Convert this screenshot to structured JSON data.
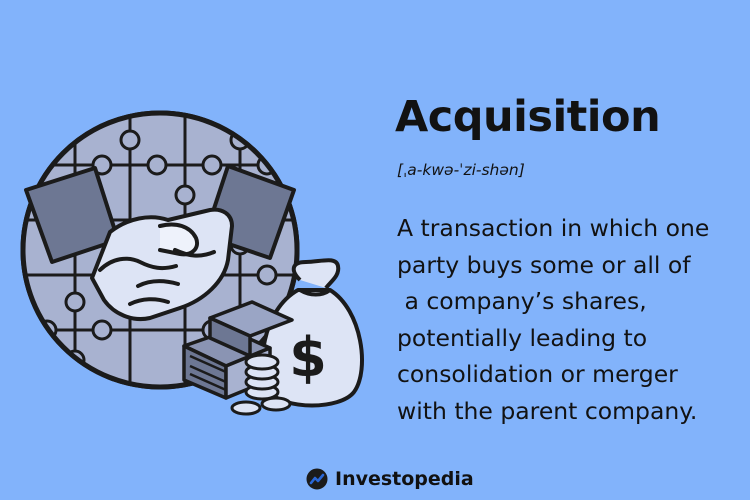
{
  "term": "Acquisition",
  "pronunciation": "[ˌa-kwə-ˈzi-shən]",
  "definition_lines": [
    "A transaction in which one",
    "party buys some or all of",
    " a company’s shares,",
    "potentially leading to",
    "consolidation or merger",
    "with the parent company."
  ],
  "brand": {
    "name": "Investopedia",
    "icon": "investopedia-logo-icon"
  },
  "illustration": {
    "icon": "handshake-over-puzzle-globe-with-money-icon",
    "bag_symbol": "$"
  },
  "colors": {
    "background": "#82b3fb",
    "text": "#121212",
    "illustration_fill": "#dde4f5",
    "sleeve": "#6d7793",
    "outline": "#1b1b1b",
    "logo_blue": "#2a67d6"
  }
}
